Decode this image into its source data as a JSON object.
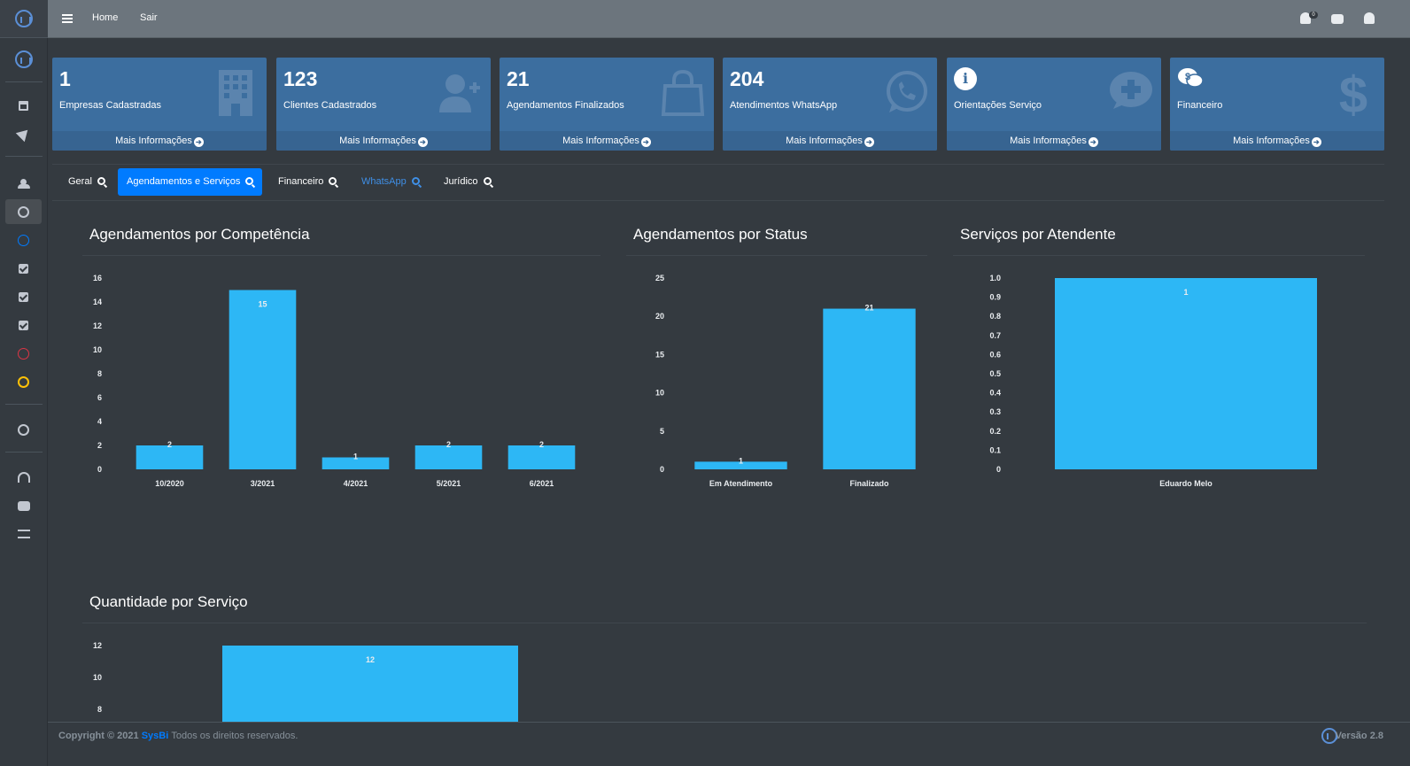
{
  "topbar": {
    "home": "Home",
    "logout": "Sair",
    "notifications_count": "0"
  },
  "cards": [
    {
      "value": "1",
      "label": "Empresas Cadastradas",
      "footer": "Mais Informações",
      "icon": "building-icon"
    },
    {
      "value": "123",
      "label": "Clientes Cadastrados",
      "footer": "Mais Informações",
      "icon": "user-plus-icon"
    },
    {
      "value": "21",
      "label": "Agendamentos Finalizados",
      "footer": "Mais Informações",
      "icon": "shopping-bag-icon"
    },
    {
      "value": "204",
      "label": "Atendimentos WhatsApp",
      "footer": "Mais Informações",
      "icon": "whatsapp-icon"
    },
    {
      "value": "",
      "label": "Orientações Serviço",
      "footer": "Mais Informações",
      "icon": "comment-medical-icon"
    },
    {
      "value": "",
      "label": "Financeiro",
      "footer": "Mais Informações",
      "icon": "dollar-icon"
    }
  ],
  "tabs": [
    {
      "label": "Geral"
    },
    {
      "label": "Agendamentos e Serviços"
    },
    {
      "label": "Financeiro"
    },
    {
      "label": "WhatsApp"
    },
    {
      "label": "Jurídico"
    }
  ],
  "chart_titles": {
    "competencia": "Agendamentos por Competência",
    "status": "Agendamentos por Status",
    "atendente": "Serviços por Atendente",
    "servico": "Quantidade por Serviço"
  },
  "chart_data": [
    {
      "type": "bar",
      "title": "Agendamentos por Competência",
      "categories": [
        "10/2020",
        "3/2021",
        "4/2021",
        "5/2021",
        "6/2021"
      ],
      "values": [
        2,
        15,
        1,
        2,
        2
      ],
      "ylim": [
        0,
        16
      ],
      "yticks": [
        "16",
        "14",
        "12",
        "10",
        "8",
        "6",
        "4",
        "2",
        "0"
      ],
      "color": "#2db7f5"
    },
    {
      "type": "bar",
      "title": "Agendamentos por Status",
      "categories": [
        "Em Atendimento",
        "Finalizado"
      ],
      "values": [
        1,
        21
      ],
      "ylim": [
        0,
        25
      ],
      "yticks": [
        "25",
        "20",
        "15",
        "10",
        "5",
        "0"
      ],
      "color": "#2db7f5"
    },
    {
      "type": "bar",
      "title": "Serviços por Atendente",
      "categories": [
        "Eduardo Melo"
      ],
      "values": [
        1
      ],
      "ylim": [
        0,
        1.0
      ],
      "yticks": [
        "1.0",
        "0.9",
        "0.8",
        "0.7",
        "0.6",
        "0.5",
        "0.4",
        "0.3",
        "0.2",
        "0.1",
        "0"
      ],
      "color": "#2db7f5"
    },
    {
      "type": "bar",
      "title": "Quantidade por Serviço",
      "categories": [
        ""
      ],
      "values": [
        12
      ],
      "ylim": [
        0,
        12
      ],
      "yticks": [
        "12",
        "10",
        "8"
      ],
      "color": "#2db7f5"
    }
  ],
  "footer": {
    "copyright": "Copyright © 2021",
    "brand": "SysBi",
    "rights": "Todos os direitos reservados.",
    "version": "Versão 2.8"
  },
  "colors": {
    "card_bg": "#3c6e9f",
    "active_tab": "#007bff",
    "bar": "#2db7f5"
  }
}
